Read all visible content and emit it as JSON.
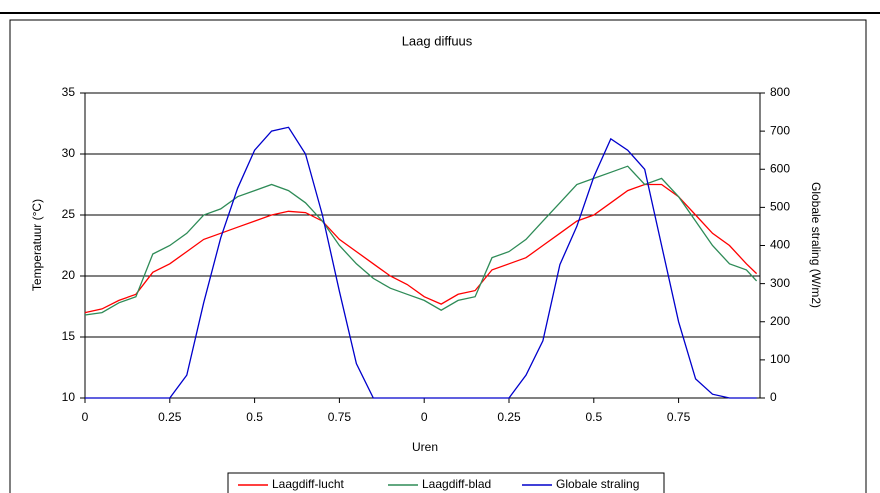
{
  "chart_data": {
    "type": "line",
    "title": "Laag diffuus",
    "x_label": "Uren",
    "y_label": "Temperatuur (°C)",
    "y2_label": "Globale straling (W/m2)",
    "x": [
      0,
      0.05,
      0.1,
      0.15,
      0.2,
      0.25,
      0.3,
      0.35,
      0.4,
      0.45,
      0.5,
      0.55,
      0.6,
      0.65,
      0.7,
      0.75,
      0.8,
      0.85,
      0.9,
      0.95,
      1.0,
      1.05,
      1.1,
      1.15,
      1.2,
      1.25,
      1.3,
      1.35,
      1.4,
      1.45,
      1.5,
      1.55,
      1.6,
      1.65,
      1.7,
      1.75,
      1.8,
      1.85,
      1.9,
      1.95,
      1.98
    ],
    "series": [
      {
        "name": "Laagdiff-lucht",
        "color": "#ff0000",
        "values": [
          17,
          17.3,
          18,
          18.5,
          20.3,
          21,
          22,
          23,
          23.5,
          24,
          24.5,
          25,
          25.3,
          25.2,
          24.5,
          23,
          22,
          21,
          20,
          19.3,
          18.3,
          17.7,
          18.5,
          18.8,
          20.5,
          21,
          21.5,
          22.5,
          23.5,
          24.5,
          25,
          26,
          27,
          27.5,
          27.5,
          26.5,
          25,
          23.5,
          22.5,
          21,
          20.2
        ]
      },
      {
        "name": "Laagdiff-blad",
        "color": "#2e8b57",
        "values": [
          16.8,
          17,
          17.8,
          18.3,
          21.8,
          22.5,
          23.5,
          25,
          25.5,
          26.5,
          27,
          27.5,
          27,
          26,
          24.5,
          22.5,
          21,
          19.8,
          19,
          18.5,
          18,
          17.2,
          18,
          18.3,
          21.5,
          22,
          23,
          24.5,
          26,
          27.5,
          28,
          28.5,
          29,
          27.5,
          28,
          26.5,
          24.5,
          22.5,
          21,
          20.5,
          19.6
        ]
      },
      {
        "name": "Globale straling",
        "color": "#0000cc",
        "axis": "y2",
        "values": [
          0,
          0,
          0,
          0,
          0,
          0,
          60,
          250,
          420,
          550,
          650,
          700,
          710,
          640,
          480,
          280,
          90,
          0,
          0,
          0,
          0,
          0,
          0,
          0,
          0,
          0,
          60,
          150,
          350,
          450,
          580,
          680,
          650,
          600,
          400,
          200,
          50,
          10,
          0,
          0,
          0
        ]
      }
    ],
    "xlim": [
      0,
      1.99
    ],
    "xticks": [
      0,
      0.25,
      0.5,
      0.75,
      {
        "value": 1,
        "label": "0"
      },
      {
        "value": 1.25,
        "label": "0.25"
      },
      {
        "value": 1.5,
        "label": "0.5"
      },
      {
        "value": 1.75,
        "label": "0.75"
      }
    ],
    "ylim": [
      10,
      35
    ],
    "yticks": [
      10,
      15,
      20,
      25,
      30,
      35
    ],
    "y2lim": [
      0,
      800
    ],
    "y2ticks": [
      0,
      100,
      200,
      300,
      400,
      500,
      600,
      700,
      800
    ],
    "grid": true,
    "legend": "bottom"
  }
}
